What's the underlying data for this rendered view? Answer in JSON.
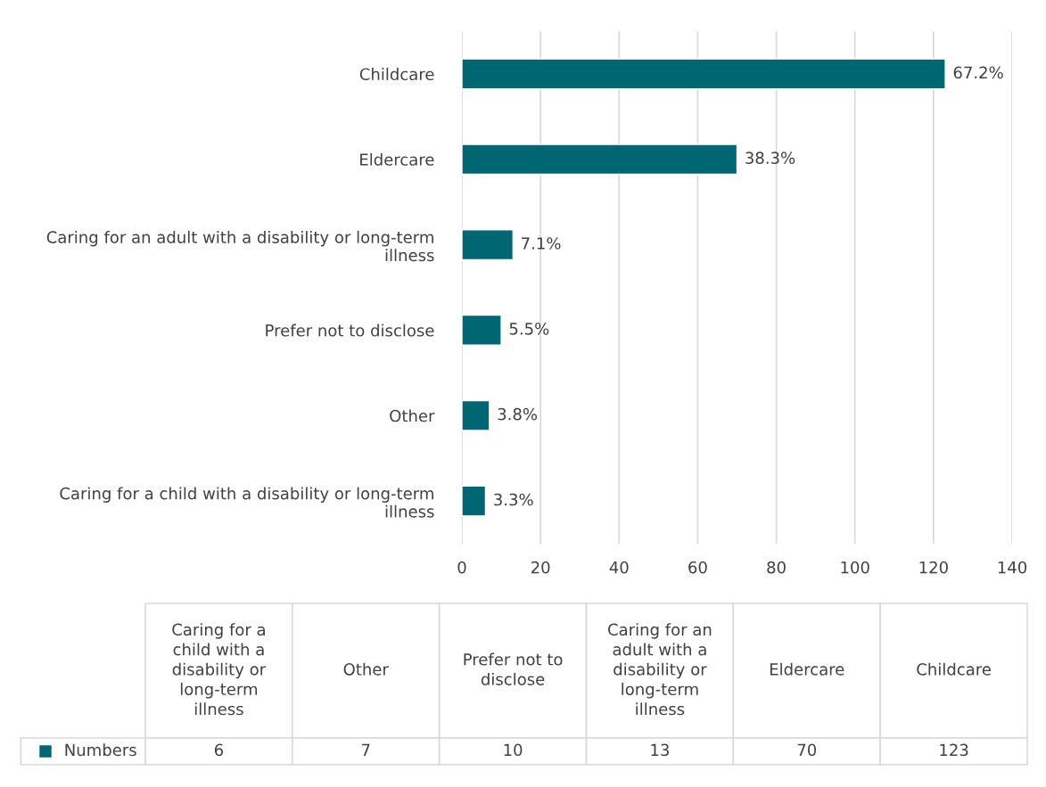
{
  "chart_data": {
    "type": "bar",
    "orientation": "horizontal",
    "categories": [
      "Childcare",
      "Eldercare",
      "Caring for an adult with a disability or long-term illness",
      "Prefer not to disclose",
      "Other",
      "Caring for a child with a disability or long-term illness"
    ],
    "series": [
      {
        "name": "Numbers",
        "color": "#006672",
        "values": [
          123,
          70,
          13,
          10,
          7,
          6
        ]
      }
    ],
    "annotations": [
      {
        "text": "67.2%",
        "x": 123,
        "y": "Childcare"
      },
      {
        "text": "38.3%",
        "x": 70,
        "y": "Eldercare"
      },
      {
        "text": "7.1%",
        "x": 13,
        "y": "Caring for an adult with a disability or long-term illness"
      },
      {
        "text": "5.5%",
        "x": 10,
        "y": "Prefer not to disclose"
      },
      {
        "text": "3.8%",
        "x": 7,
        "y": "Other"
      },
      {
        "text": "3.3%",
        "x": 6,
        "y": "Caring for a child with a disability or long-term illness"
      },
      "6",
      "7",
      "10",
      "13",
      "70",
      "123"
    ],
    "xlim": [
      0,
      140
    ],
    "xticks": [
      0,
      20,
      40,
      60,
      80,
      100,
      120,
      140
    ],
    "grid": "x"
  }
}
